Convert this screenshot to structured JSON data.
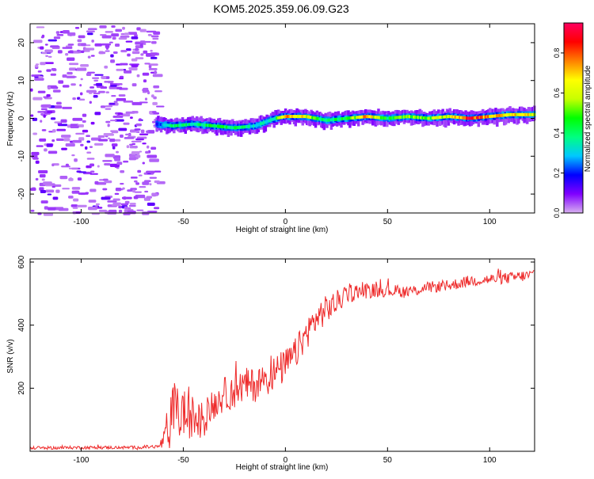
{
  "title": "KOM5.2025.359.06.09.G23",
  "chart_data": [
    {
      "type": "heatmap",
      "name": "spectrogram",
      "xlabel": "Height of straight line (km)",
      "ylabel": "Frequency (Hz)",
      "xlim": [
        -125,
        122
      ],
      "ylim": [
        -25,
        25
      ],
      "xticks": [
        -100,
        -50,
        0,
        50,
        100
      ],
      "xtick_labels": [
        "-100",
        "-50",
        "0",
        "50",
        "100"
      ],
      "yticks": [
        -20,
        -10,
        0,
        10,
        20
      ],
      "ytick_labels": [
        "-20",
        "-10",
        "0",
        "10",
        "20"
      ],
      "noise_region_x": [
        -125,
        -63
      ],
      "signal_track": {
        "x": [
          -63,
          -55,
          -45,
          -35,
          -25,
          -15,
          -5,
          0,
          10,
          20,
          30,
          40,
          50,
          60,
          70,
          80,
          90,
          100,
          110,
          122
        ],
        "y": [
          -1.5,
          -2.0,
          -1.5,
          -2.0,
          -2.5,
          -2.0,
          0.0,
          0.5,
          0.5,
          -0.5,
          0.0,
          0.5,
          0.0,
          0.5,
          0.0,
          0.5,
          0.0,
          0.5,
          1.0,
          1.0
        ],
        "amplitude": [
          0.2,
          0.45,
          0.4,
          0.5,
          0.45,
          0.35,
          0.4,
          0.85,
          0.7,
          0.4,
          0.5,
          0.8,
          0.45,
          0.6,
          0.55,
          0.7,
          0.95,
          0.8,
          0.75,
          0.7
        ]
      },
      "colorbar": {
        "label": "Normalized spectral amplitude",
        "range": [
          0,
          0.95
        ],
        "ticks": [
          0.0,
          0.2,
          0.4,
          0.6,
          0.8
        ],
        "tick_labels": [
          "0.0",
          "0.2",
          "0.4",
          "0.6",
          "0.8"
        ],
        "colors": [
          "#d8b0f0",
          "#8000ff",
          "#0000ff",
          "#00c8ff",
          "#00ff80",
          "#00ff00",
          "#c8ff00",
          "#ffff00",
          "#ff8000",
          "#ff0000",
          "#ff0060"
        ]
      }
    },
    {
      "type": "line",
      "name": "snr",
      "xlabel": "Height of straight line (km)",
      "ylabel": "SNR (v/v)",
      "xlim": [
        -125,
        122
      ],
      "ylim": [
        0,
        610
      ],
      "xticks": [
        -100,
        -50,
        0,
        50,
        100
      ],
      "xtick_labels": [
        "-100",
        "-50",
        "0",
        "50",
        "100"
      ],
      "yticks": [
        200,
        400,
        600
      ],
      "ytick_labels": [
        "200",
        "400",
        "600"
      ],
      "color": "#ee2a2a",
      "x": [
        -125,
        -100,
        -75,
        -62,
        -57,
        -55,
        -52,
        -50,
        -47,
        -45,
        -42,
        -40,
        -35,
        -30,
        -25,
        -20,
        -15,
        -10,
        -5,
        0,
        5,
        10,
        15,
        20,
        25,
        30,
        40,
        50,
        60,
        70,
        80,
        90,
        100,
        110,
        122
      ],
      "y": [
        10,
        12,
        12,
        15,
        55,
        150,
        110,
        130,
        90,
        115,
        90,
        100,
        150,
        180,
        190,
        210,
        210,
        230,
        250,
        270,
        310,
        370,
        420,
        450,
        470,
        500,
        510,
        510,
        505,
        520,
        525,
        540,
        545,
        550,
        560
      ],
      "noise_amplitude": [
        5,
        5,
        5,
        6,
        60,
        90,
        80,
        80,
        70,
        70,
        60,
        55,
        50,
        55,
        55,
        55,
        55,
        55,
        55,
        55,
        50,
        50,
        50,
        45,
        40,
        30,
        25,
        20,
        20,
        18,
        18,
        18,
        18,
        18,
        18
      ]
    }
  ]
}
